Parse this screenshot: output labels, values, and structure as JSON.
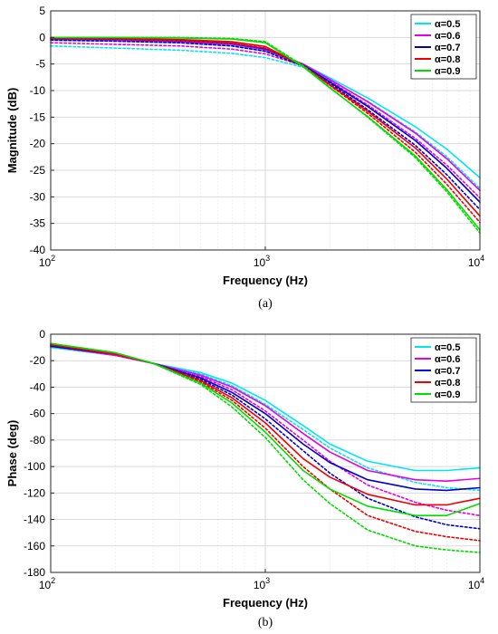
{
  "chart_data": [
    {
      "type": "line",
      "caption": "(a)",
      "xlabel": "Frequency (Hz)",
      "ylabel": "Magnitude (dB)",
      "xscale": "log",
      "xlim": [
        100,
        10000
      ],
      "ylim": [
        -40,
        5
      ],
      "x_ticks": [
        100,
        1000,
        10000
      ],
      "x_tick_base": [
        "10",
        "10",
        "10"
      ],
      "x_tick_exp": [
        "2",
        "3",
        "4"
      ],
      "y_ticks": [
        "5",
        "0",
        "-5",
        "-10",
        "-15",
        "-20",
        "-25",
        "-30",
        "-35",
        "-40"
      ],
      "grid": true,
      "legend_position": "top-right",
      "x": [
        100,
        200,
        400,
        700,
        1000,
        1500,
        2000,
        3000,
        5000,
        7000,
        10000
      ],
      "series": [
        {
          "name": "α=0.5",
          "color": "#00e5ee",
          "style": "solid",
          "values": [
            -0.5,
            -0.7,
            -1.0,
            -1.6,
            -2.6,
            -5.0,
            -7.6,
            -11.4,
            -16.8,
            -21.0,
            -26.4
          ]
        },
        {
          "name": "α=0.5",
          "color": "#00e5ee",
          "style": "dotted",
          "values": [
            -1.6,
            -2.0,
            -2.4,
            -3.0,
            -3.8,
            -5.6,
            -8.0,
            -12.0,
            -17.8,
            -22.4,
            -28.4
          ]
        },
        {
          "name": "α=0.6",
          "color": "#e600e6",
          "style": "solid",
          "values": [
            -0.3,
            -0.5,
            -0.8,
            -1.3,
            -2.3,
            -5.0,
            -7.9,
            -12.1,
            -18.0,
            -22.8,
            -28.8
          ]
        },
        {
          "name": "α=0.6",
          "color": "#e600e6",
          "style": "dotted",
          "values": [
            -1.0,
            -1.3,
            -1.6,
            -2.2,
            -3.1,
            -5.3,
            -8.2,
            -12.7,
            -19.0,
            -24.0,
            -30.2
          ]
        },
        {
          "name": "α=0.7",
          "color": "#0000cc",
          "style": "solid",
          "values": [
            -0.2,
            -0.3,
            -0.6,
            -1.1,
            -2.1,
            -5.2,
            -8.4,
            -13.0,
            -19.4,
            -24.6,
            -31.0
          ]
        },
        {
          "name": "α=0.7",
          "color": "#0000cc",
          "style": "dotted",
          "values": [
            -0.5,
            -0.7,
            -1.0,
            -1.6,
            -2.6,
            -5.4,
            -8.6,
            -13.6,
            -20.3,
            -25.8,
            -32.4
          ]
        },
        {
          "name": "α=0.8",
          "color": "#ee0000",
          "style": "solid",
          "values": [
            -0.1,
            -0.2,
            -0.4,
            -0.8,
            -1.7,
            -5.3,
            -8.9,
            -13.9,
            -20.8,
            -26.6,
            -33.6
          ]
        },
        {
          "name": "α=0.8",
          "color": "#ee0000",
          "style": "dotted",
          "values": [
            -0.2,
            -0.3,
            -0.6,
            -1.1,
            -2.0,
            -5.4,
            -9.0,
            -14.3,
            -21.6,
            -27.6,
            -34.8
          ]
        },
        {
          "name": "α=0.9",
          "color": "#00dd00",
          "style": "solid",
          "values": [
            0.0,
            0.0,
            -0.1,
            -0.3,
            -1.0,
            -5.5,
            -9.5,
            -14.9,
            -22.3,
            -28.6,
            -36.2
          ]
        },
        {
          "name": "α=0.9",
          "color": "#00dd00",
          "style": "dotted",
          "values": [
            0.0,
            0.0,
            0.0,
            -0.2,
            -0.8,
            -5.3,
            -9.4,
            -15.0,
            -22.6,
            -29.0,
            -36.8
          ]
        }
      ]
    },
    {
      "type": "line",
      "caption": "(b)",
      "xlabel": "Frequency (Hz)",
      "ylabel": "Phase (deg)",
      "xscale": "log",
      "xlim": [
        100,
        10000
      ],
      "ylim": [
        -180,
        0
      ],
      "x_ticks": [
        100,
        1000,
        10000
      ],
      "x_tick_base": [
        "10",
        "10",
        "10"
      ],
      "x_tick_exp": [
        "2",
        "3",
        "4"
      ],
      "y_ticks": [
        "0",
        "-20",
        "-40",
        "-60",
        "-80",
        "-100",
        "-120",
        "-140",
        "-160",
        "-180"
      ],
      "grid": true,
      "legend_position": "top-right",
      "x": [
        100,
        200,
        300,
        500,
        700,
        1000,
        1500,
        2000,
        3000,
        5000,
        7000,
        10000
      ],
      "series": [
        {
          "name": "α=0.5",
          "color": "#00e5ee",
          "style": "solid",
          "values": [
            -10,
            -16,
            -22,
            -29,
            -37,
            -50,
            -69,
            -83,
            -96,
            -103,
            -103,
            -101
          ]
        },
        {
          "name": "α=0.5",
          "color": "#00e5ee",
          "style": "dotted",
          "values": [
            -10,
            -16,
            -22,
            -30,
            -39,
            -53,
            -72,
            -86,
            -101,
            -112,
            -116,
            -118
          ]
        },
        {
          "name": "α=0.6",
          "color": "#e600e6",
          "style": "solid",
          "values": [
            -9,
            -16,
            -22,
            -31,
            -40,
            -54,
            -75,
            -89,
            -103,
            -110,
            -111,
            -109
          ]
        },
        {
          "name": "α=0.6",
          "color": "#e600e6",
          "style": "dotted",
          "values": [
            -9,
            -16,
            -22,
            -32,
            -42,
            -58,
            -80,
            -96,
            -114,
            -127,
            -133,
            -137
          ]
        },
        {
          "name": "α=0.7",
          "color": "#0000cc",
          "style": "solid",
          "values": [
            -9,
            -15,
            -22,
            -33,
            -44,
            -60,
            -83,
            -97,
            -110,
            -117,
            -118,
            -116
          ]
        },
        {
          "name": "α=0.7",
          "color": "#0000cc",
          "style": "dotted",
          "values": [
            -9,
            -15,
            -22,
            -34,
            -46,
            -64,
            -88,
            -105,
            -124,
            -138,
            -144,
            -147
          ]
        },
        {
          "name": "α=0.8",
          "color": "#ee0000",
          "style": "solid",
          "values": [
            -8,
            -15,
            -22,
            -35,
            -48,
            -67,
            -94,
            -108,
            -121,
            -129,
            -129,
            -124
          ]
        },
        {
          "name": "α=0.8",
          "color": "#ee0000",
          "style": "dotted",
          "values": [
            -8,
            -15,
            -22,
            -36,
            -50,
            -71,
            -100,
            -117,
            -137,
            -149,
            -153,
            -156
          ]
        },
        {
          "name": "α=0.9",
          "color": "#00dd00",
          "style": "solid",
          "values": [
            -7,
            -14,
            -22,
            -37,
            -52,
            -74,
            -103,
            -117,
            -130,
            -137,
            -137,
            -128
          ]
        },
        {
          "name": "α=0.9",
          "color": "#00dd00",
          "style": "dotted",
          "values": [
            -7,
            -14,
            -22,
            -38,
            -55,
            -78,
            -110,
            -128,
            -148,
            -160,
            -163,
            -165
          ]
        }
      ]
    }
  ]
}
